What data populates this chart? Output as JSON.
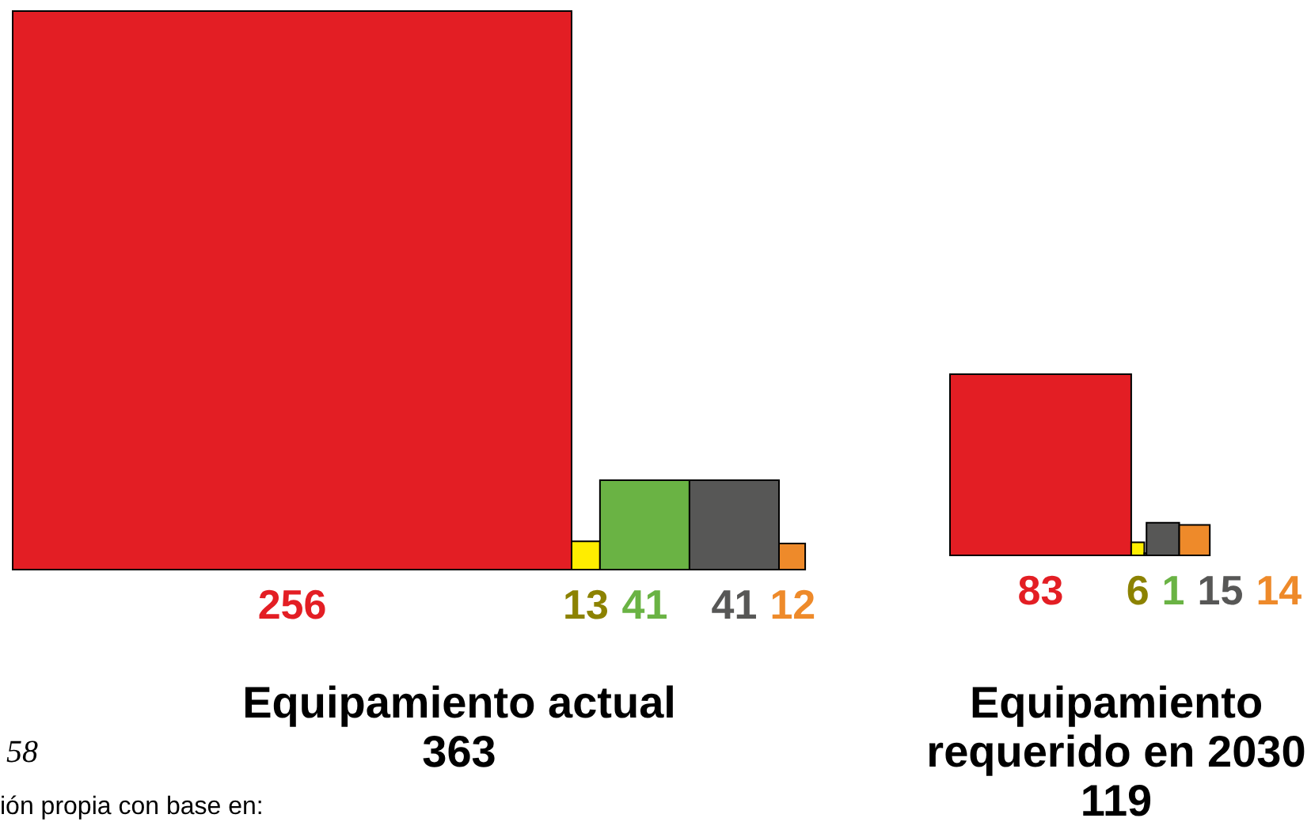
{
  "chart_data": [
    {
      "type": "other",
      "title": "Equipamiento actual",
      "subtitle": "363",
      "categories": [
        null,
        null,
        null,
        null,
        null
      ],
      "values": [
        256,
        13,
        41,
        41,
        12
      ],
      "colors": [
        "#e31e24",
        "#ffed00",
        "#6ab344",
        "#575756",
        "#ee8a2a"
      ],
      "data_labels": true,
      "annotations": [
        "58",
        "ión propia con base en:"
      ]
    },
    {
      "type": "other",
      "title": "Equipamiento requerido en 2030",
      "subtitle": "119",
      "categories": [
        null,
        null,
        null,
        null,
        null
      ],
      "values": [
        83,
        6,
        1,
        15,
        14
      ],
      "colors": [
        "#e31e24",
        "#ffed00",
        "#6ab344",
        "#575756",
        "#ee8a2a"
      ],
      "data_labels": true
    }
  ]
}
